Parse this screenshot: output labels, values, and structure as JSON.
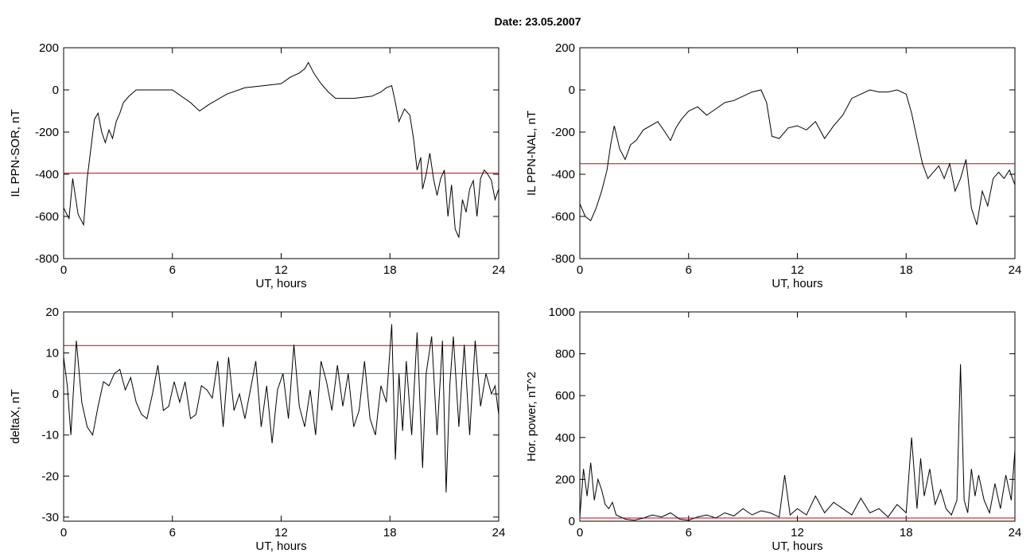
{
  "title": "Date:  23.05.2007",
  "chart_data": [
    {
      "type": "line",
      "ylabel": "IL PPN-SOR, nT",
      "xlabel": "UT, hours",
      "xlim": [
        0,
        24
      ],
      "ylim": [
        -800,
        200
      ],
      "xticks": [
        0,
        6,
        12,
        18,
        24
      ],
      "yticks": [
        200,
        0,
        -200,
        -400,
        -600,
        -800
      ],
      "threshold": -395,
      "series": [
        {
          "x": [
            0,
            0.3,
            0.5,
            0.8,
            1.1,
            1.3,
            1.5,
            1.7,
            1.9,
            2.1,
            2.3,
            2.5,
            2.7,
            2.9,
            3.1,
            3.3,
            3.6,
            4.0,
            5.0,
            6.0,
            7.0,
            7.5,
            8.0,
            9.0,
            10.0,
            11.0,
            12.0,
            12.5,
            13.0,
            13.3,
            13.5,
            13.8,
            14.2,
            14.6,
            15.0,
            16.0,
            17.0,
            17.5,
            17.8,
            18.1,
            18.3,
            18.5,
            18.8,
            19.1,
            19.3,
            19.5,
            19.7,
            19.8,
            20.0,
            20.2,
            20.4,
            20.6,
            20.8,
            21.0,
            21.2,
            21.4,
            21.6,
            21.8,
            22.0,
            22.2,
            22.4,
            22.6,
            22.8,
            23.0,
            23.2,
            23.4,
            23.6,
            23.8,
            24.0
          ],
          "y": [
            -560,
            -610,
            -420,
            -590,
            -640,
            -420,
            -280,
            -140,
            -110,
            -200,
            -250,
            -190,
            -230,
            -150,
            -110,
            -60,
            -30,
            0,
            0,
            0,
            -60,
            -100,
            -70,
            -20,
            10,
            20,
            30,
            60,
            80,
            100,
            130,
            80,
            30,
            -10,
            -40,
            -40,
            -30,
            -10,
            10,
            20,
            -60,
            -150,
            -90,
            -120,
            -230,
            -380,
            -320,
            -470,
            -400,
            -300,
            -420,
            -500,
            -420,
            -380,
            -600,
            -450,
            -660,
            -700,
            -520,
            -580,
            -470,
            -430,
            -600,
            -420,
            -380,
            -400,
            -430,
            -520,
            -470
          ]
        }
      ]
    },
    {
      "type": "line",
      "ylabel": "IL PPN-NAL, nT",
      "xlabel": "UT, hours",
      "xlim": [
        0,
        24
      ],
      "ylim": [
        -800,
        200
      ],
      "xticks": [
        0,
        6,
        12,
        18,
        24
      ],
      "yticks": [
        200,
        0,
        -200,
        -400,
        -600,
        -800
      ],
      "threshold": -350,
      "series": [
        {
          "x": [
            0,
            0.3,
            0.6,
            0.9,
            1.2,
            1.5,
            1.7,
            1.9,
            2.2,
            2.5,
            2.8,
            3.1,
            3.5,
            3.9,
            4.3,
            4.7,
            5.0,
            5.3,
            5.6,
            6.0,
            6.5,
            7.0,
            7.5,
            8.0,
            8.5,
            9.0,
            9.5,
            10.0,
            10.3,
            10.6,
            11.0,
            11.5,
            12.0,
            12.5,
            13.0,
            13.5,
            14.0,
            14.5,
            15.0,
            15.5,
            16.0,
            16.5,
            17.0,
            17.5,
            18.0,
            18.3,
            18.6,
            18.9,
            19.2,
            19.5,
            19.8,
            20.1,
            20.4,
            20.7,
            21.0,
            21.3,
            21.6,
            21.9,
            22.2,
            22.5,
            22.8,
            23.1,
            23.4,
            23.7,
            24.0
          ],
          "y": [
            -540,
            -600,
            -620,
            -560,
            -480,
            -380,
            -260,
            -170,
            -280,
            -330,
            -260,
            -240,
            -190,
            -170,
            -150,
            -200,
            -240,
            -180,
            -140,
            -100,
            -80,
            -120,
            -90,
            -60,
            -50,
            -30,
            -10,
            0,
            -60,
            -220,
            -230,
            -180,
            -170,
            -190,
            -150,
            -230,
            -170,
            -120,
            -40,
            -20,
            0,
            -10,
            -10,
            0,
            -20,
            -110,
            -230,
            -350,
            -420,
            -390,
            -360,
            -420,
            -350,
            -480,
            -420,
            -330,
            -560,
            -640,
            -480,
            -550,
            -420,
            -390,
            -420,
            -380,
            -450
          ]
        }
      ]
    },
    {
      "type": "line",
      "ylabel": "deltaX, nT",
      "xlabel": "UT, hours",
      "xlim": [
        0,
        24
      ],
      "ylim": [
        -31,
        20
      ],
      "xticks": [
        0,
        6,
        12,
        18,
        24
      ],
      "yticks": [
        20,
        10,
        0,
        -10,
        -20,
        -30
      ],
      "thresholds": [
        11.8,
        5
      ],
      "series": [
        {
          "x": [
            0,
            0.2,
            0.4,
            0.7,
            1.0,
            1.3,
            1.6,
            1.9,
            2.2,
            2.5,
            2.8,
            3.1,
            3.4,
            3.7,
            4.0,
            4.3,
            4.6,
            4.9,
            5.2,
            5.5,
            5.8,
            6.1,
            6.4,
            6.7,
            7.0,
            7.3,
            7.6,
            7.9,
            8.2,
            8.5,
            8.8,
            9.1,
            9.4,
            9.7,
            10.0,
            10.3,
            10.6,
            10.9,
            11.2,
            11.5,
            11.8,
            12.1,
            12.4,
            12.7,
            13.0,
            13.3,
            13.6,
            13.9,
            14.2,
            14.5,
            14.8,
            15.1,
            15.4,
            15.7,
            16.0,
            16.3,
            16.6,
            16.9,
            17.2,
            17.5,
            17.8,
            18.1,
            18.3,
            18.5,
            18.7,
            18.9,
            19.2,
            19.5,
            19.8,
            20.0,
            20.3,
            20.6,
            20.9,
            21.1,
            21.3,
            21.5,
            21.8,
            22.1,
            22.4,
            22.7,
            23.0,
            23.3,
            23.6,
            23.8,
            24.0
          ],
          "y": [
            9,
            2,
            -10,
            13,
            -2,
            -8,
            -10,
            -3,
            3,
            2,
            5,
            6,
            1,
            4,
            -2,
            -5,
            -6,
            0,
            7,
            -4,
            -3,
            3,
            -2,
            3,
            -6,
            -5,
            2,
            1,
            -1,
            8,
            -8,
            9,
            -4,
            0,
            -6,
            1,
            8,
            -8,
            2,
            -12,
            1,
            5,
            -6,
            12,
            -3,
            -8,
            1,
            -10,
            8,
            3,
            -4,
            7,
            -3,
            5,
            -8,
            -4,
            8,
            -6,
            -10,
            2,
            -2,
            17,
            -16,
            5,
            -9,
            8,
            -10,
            15,
            -18,
            5,
            14,
            -10,
            13,
            -24,
            2,
            14,
            -8,
            12,
            -10,
            13,
            -3,
            5,
            0,
            2,
            -5
          ]
        }
      ]
    },
    {
      "type": "line",
      "ylabel": "Hor. power, nT^2",
      "xlabel": "UT, hours",
      "xlim": [
        0,
        24
      ],
      "ylim": [
        0,
        1000
      ],
      "xticks": [
        0,
        6,
        12,
        18,
        24
      ],
      "yticks": [
        1000,
        800,
        600,
        400,
        200,
        0
      ],
      "threshold": 15,
      "series": [
        {
          "x": [
            0,
            0.2,
            0.4,
            0.6,
            0.8,
            1.0,
            1.2,
            1.4,
            1.6,
            1.8,
            2.0,
            2.5,
            3.0,
            3.5,
            4.0,
            4.5,
            5.0,
            5.5,
            6.0,
            6.5,
            7.0,
            7.5,
            8.0,
            8.5,
            9.0,
            9.5,
            10.0,
            10.5,
            11.0,
            11.3,
            11.6,
            12.0,
            12.5,
            13.0,
            13.5,
            14.0,
            14.5,
            15.0,
            15.5,
            16.0,
            16.5,
            17.0,
            17.5,
            18.0,
            18.3,
            18.6,
            18.8,
            19.0,
            19.3,
            19.6,
            19.9,
            20.2,
            20.5,
            20.8,
            21.0,
            21.2,
            21.4,
            21.6,
            21.8,
            22.0,
            22.3,
            22.6,
            22.9,
            23.2,
            23.5,
            23.8,
            24.0
          ],
          "y": [
            20,
            250,
            120,
            280,
            100,
            200,
            150,
            80,
            60,
            90,
            30,
            10,
            5,
            15,
            30,
            20,
            40,
            10,
            5,
            20,
            30,
            15,
            40,
            25,
            60,
            30,
            50,
            40,
            20,
            220,
            30,
            60,
            30,
            120,
            40,
            90,
            60,
            30,
            110,
            40,
            60,
            20,
            80,
            40,
            400,
            60,
            300,
            120,
            250,
            80,
            150,
            60,
            30,
            100,
            750,
            100,
            40,
            250,
            120,
            220,
            100,
            40,
            180,
            60,
            220,
            100,
            340
          ]
        }
      ]
    }
  ]
}
